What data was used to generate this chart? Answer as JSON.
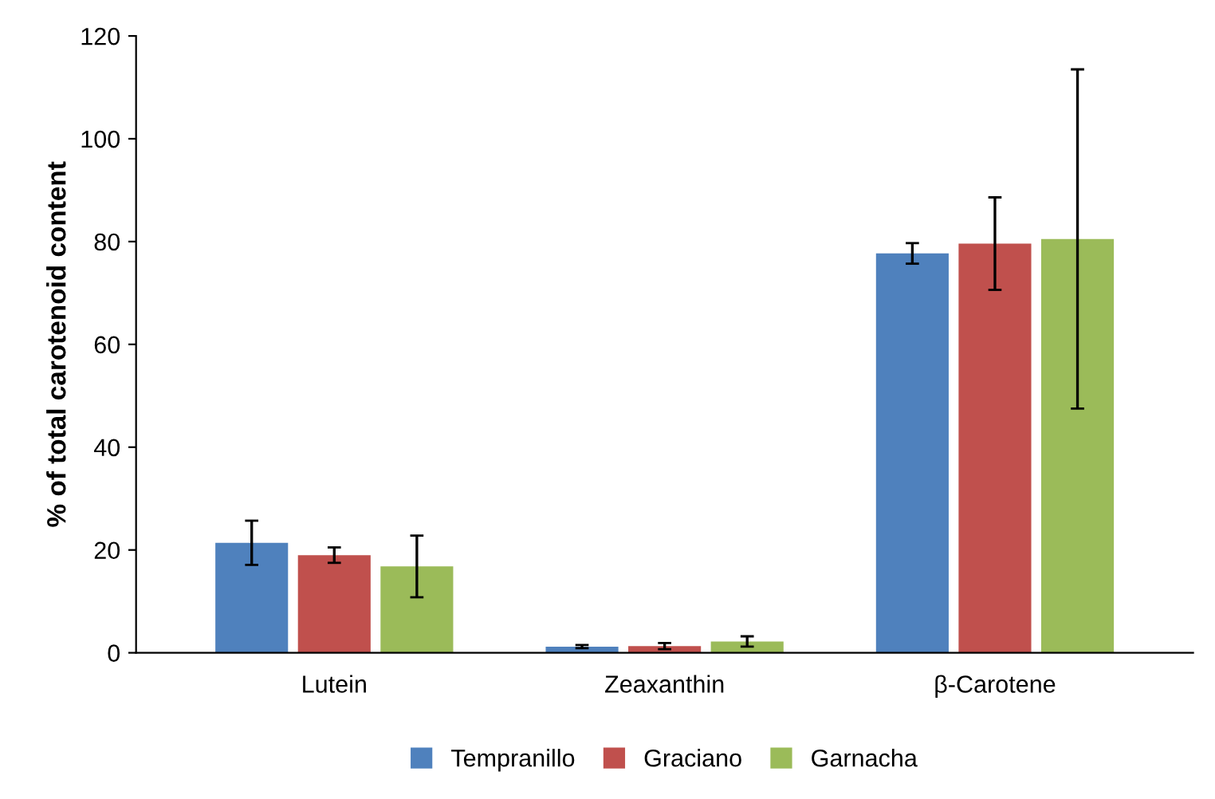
{
  "chart_data": {
    "type": "bar",
    "ylabel": "% of total carotenoid content",
    "categories": [
      "Lutein",
      "Zeaxanthin",
      "β-Carotene"
    ],
    "series": [
      {
        "name": "Tempranillo",
        "color": "#4f81bd",
        "values": [
          21.4,
          1.2,
          77.7
        ],
        "errors": [
          4.3,
          0.3,
          2
        ]
      },
      {
        "name": "Graciano",
        "color": "#c0504d",
        "values": [
          19.0,
          1.3,
          79.6
        ],
        "errors": [
          1.5,
          0.6,
          9
        ]
      },
      {
        "name": "Garnacha",
        "color": "#9bbb59",
        "values": [
          16.8,
          2.2,
          80.5
        ],
        "errors": [
          6,
          1,
          33
        ]
      }
    ],
    "ylim": [
      0,
      120
    ],
    "yticks": [
      0,
      20,
      40,
      60,
      80,
      100,
      120
    ],
    "grid": false,
    "legend": "bottom"
  }
}
